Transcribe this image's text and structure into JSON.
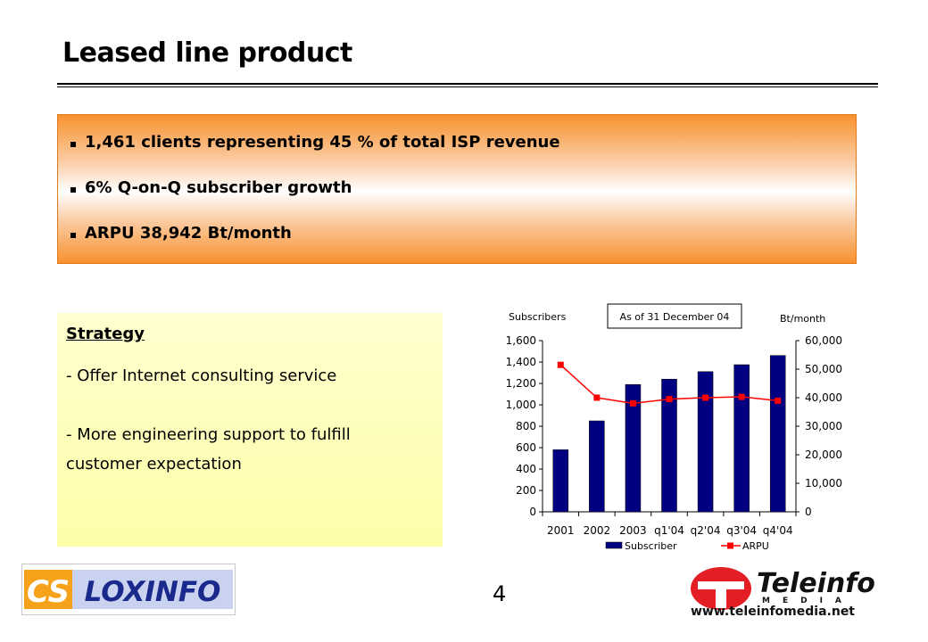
{
  "title": "Leased line product",
  "bullets": [
    "1,461 clients representing 45 % of total ISP revenue",
    "6% Q-on-Q subscriber growth",
    "ARPU 38,942 Bt/month"
  ],
  "strategy": {
    "heading": "Strategy",
    "line1": "- Offer Internet consulting service",
    "line2a": "- More engineering support to fulfill",
    "line2b": "customer expectation"
  },
  "page_number": "4",
  "logos": {
    "left": "CSLOXINFO",
    "right_main": "Teleinfo",
    "right_sub": "MEDIA",
    "right_url": "www.teleinfomedia.net"
  },
  "colors": {
    "bar": "#000080",
    "line": "#ff0000",
    "banner_orange": "#f7922e",
    "strategy_yellow": "#fefea8"
  },
  "chart_data": {
    "type": "bar",
    "annotation": "As of 31 December 04",
    "left_axis_label": "Subscribers",
    "right_axis_label": "Bt/month",
    "categories": [
      "2001",
      "2002",
      "2003",
      "q1'04",
      "q2'04",
      "q3'04",
      "q4'04"
    ],
    "left_ticks": [
      "0",
      "200",
      "400",
      "600",
      "800",
      "1,000",
      "1,200",
      "1,400",
      "1,600"
    ],
    "right_ticks": [
      "0",
      "10,000",
      "20,000",
      "30,000",
      "40,000",
      "50,000",
      "60,000"
    ],
    "ylim_left": [
      0,
      1600
    ],
    "ylim_right": [
      0,
      60000
    ],
    "series": [
      {
        "name": "Subscriber",
        "kind": "bar",
        "axis": "left",
        "values": [
          580,
          850,
          1190,
          1240,
          1310,
          1375,
          1461
        ]
      },
      {
        "name": "ARPU",
        "kind": "line",
        "axis": "right",
        "values": [
          51500,
          40000,
          38000,
          39500,
          40000,
          40300,
          38942
        ]
      }
    ],
    "legend_position": "bottom"
  }
}
